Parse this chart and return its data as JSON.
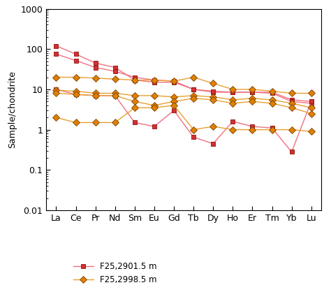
{
  "elements": [
    "La",
    "Ce",
    "Pr",
    "Nd",
    "Sm",
    "Eu",
    "Gd",
    "Tb",
    "Dy",
    "Ho",
    "Er",
    "Tm",
    "Yb",
    "Lu"
  ],
  "series_red": [
    [
      120,
      75,
      45,
      35,
      17,
      15,
      15,
      10,
      8.5,
      8.5,
      8.5,
      8.5,
      5.5,
      5.0
    ],
    [
      75,
      52,
      35,
      28,
      20,
      17,
      16,
      10,
      9.0,
      8.5,
      8.5,
      8.0,
      5.0,
      4.5
    ],
    [
      10,
      7.5,
      7.0,
      7.0,
      1.5,
      1.2,
      3.0,
      0.65,
      0.45,
      1.6,
      1.2,
      1.1,
      0.28,
      5.0
    ]
  ],
  "series_orange": [
    [
      20,
      20,
      19,
      18,
      17,
      17,
      16,
      20,
      14,
      10,
      10,
      9,
      8,
      8
    ],
    [
      9.5,
      9.0,
      8.0,
      8.0,
      7.0,
      7.0,
      6.5,
      7.0,
      6.5,
      5.5,
      6.0,
      5.5,
      4.5,
      3.5
    ],
    [
      8.0,
      7.5,
      7.0,
      7.0,
      5.0,
      4.0,
      5.0,
      6.0,
      5.5,
      4.5,
      5.0,
      4.5,
      3.5,
      2.5
    ],
    [
      2.0,
      1.5,
      1.5,
      1.5,
      3.5,
      3.5,
      4.0,
      1.0,
      1.2,
      1.0,
      1.0,
      1.0,
      1.0,
      0.9
    ]
  ],
  "red_marker_color": "#d43030",
  "red_line_color": "#f07080",
  "orange_marker_color": "#e08000",
  "orange_line_color": "#e8a030",
  "ylim": [
    0.01,
    1000
  ],
  "ylabel": "Sample/chondrite",
  "legend_red": "F25,2901.5 m",
  "legend_orange": "F25,2998.5 m",
  "background_color": "#ffffff",
  "marker_size": 5,
  "linewidth": 1.0
}
